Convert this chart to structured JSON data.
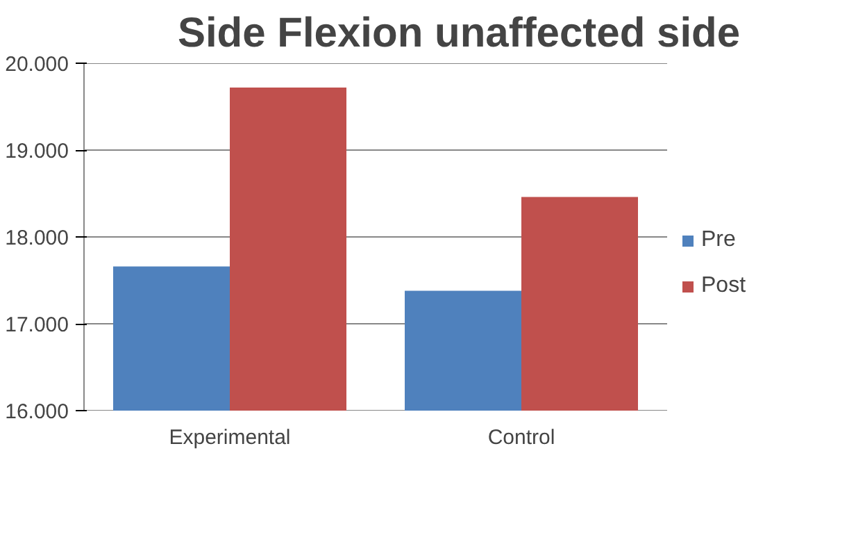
{
  "chart_data": {
    "type": "bar",
    "title": "Side Flexion unaffected side",
    "categories": [
      "Experimental",
      "Control"
    ],
    "series": [
      {
        "name": "Pre",
        "color": "#4f81bd",
        "values": [
          17.66,
          17.38
        ]
      },
      {
        "name": "Post",
        "color": "#c0504d",
        "values": [
          19.72,
          18.46
        ]
      }
    ],
    "ylim": [
      16,
      20
    ],
    "yticks": [
      {
        "value": 16,
        "label": "16.000"
      },
      {
        "value": 17,
        "label": "17.000"
      },
      {
        "value": 18,
        "label": "18.000"
      },
      {
        "value": 19,
        "label": "19.000"
      },
      {
        "value": 20,
        "label": "20.000"
      }
    ],
    "grid": "y",
    "legend": "right"
  }
}
